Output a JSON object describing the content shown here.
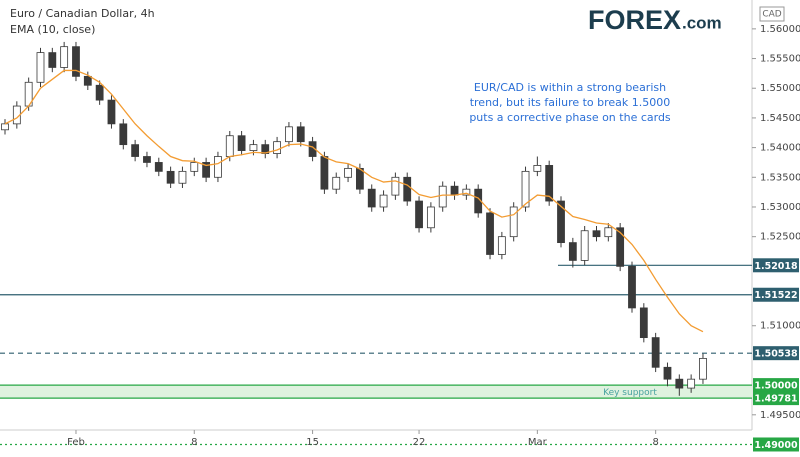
{
  "chart_data": {
    "type": "candlestick",
    "title": "Euro / Canadian Dollar, 4h",
    "logo": {
      "brand": "FOREX",
      "suffix": ".com"
    },
    "currency": "CAD",
    "annotation": [
      "EUR/CAD is within a strong bearish",
      "trend, but its failure to break 1.5000",
      "puts a corrective phase on the cards"
    ],
    "categories": [
      null,
      null,
      null,
      null,
      null,
      null,
      "Feb",
      null,
      null,
      null,
      null,
      null,
      null,
      null,
      null,
      null,
      "8",
      null,
      null,
      null,
      null,
      null,
      null,
      null,
      null,
      null,
      "15",
      null,
      null,
      null,
      null,
      null,
      null,
      null,
      null,
      "22",
      null,
      null,
      null,
      null,
      null,
      null,
      null,
      null,
      null,
      "Mar",
      null,
      null,
      null,
      null,
      null,
      null,
      null,
      null,
      null,
      "8",
      null,
      null,
      null,
      null
    ],
    "open": [
      1.543,
      1.544,
      1.547,
      1.551,
      1.556,
      1.5535,
      1.557,
      1.552,
      1.5505,
      1.548,
      1.544,
      1.5405,
      1.5385,
      1.5375,
      1.536,
      1.534,
      1.536,
      1.5375,
      1.535,
      1.5385,
      1.542,
      1.5395,
      1.5405,
      1.539,
      1.541,
      1.5435,
      1.541,
      1.5385,
      1.533,
      1.535,
      1.5365,
      1.533,
      1.53,
      1.532,
      1.535,
      1.531,
      1.5265,
      1.53,
      1.5335,
      1.532,
      1.533,
      1.529,
      1.522,
      1.525,
      1.53,
      1.536,
      1.537,
      1.531,
      1.524,
      1.521,
      1.526,
      1.525,
      1.5265,
      1.52,
      1.513,
      1.508,
      1.503,
      1.501,
      1.4995,
      1.501
    ],
    "high": [
      1.5448,
      1.5478,
      1.5518,
      1.5568,
      1.5568,
      1.5578,
      1.5578,
      1.5528,
      1.5513,
      1.5488,
      1.5448,
      1.5413,
      1.5393,
      1.5383,
      1.5368,
      1.5368,
      1.5383,
      1.5383,
      1.5393,
      1.5428,
      1.5428,
      1.5413,
      1.5413,
      1.5418,
      1.5443,
      1.5443,
      1.5418,
      1.5393,
      1.5358,
      1.5373,
      1.5373,
      1.5338,
      1.5328,
      1.5358,
      1.5358,
      1.5318,
      1.5308,
      1.5343,
      1.5343,
      1.5338,
      1.5338,
      1.5298,
      1.5258,
      1.5308,
      1.5368,
      1.5385,
      1.5378,
      1.5318,
      1.5248,
      1.5268,
      1.5268,
      1.5273,
      1.5273,
      1.5208,
      1.5138,
      1.5088,
      1.5038,
      1.5018,
      1.5018,
      1.5053
    ],
    "low": [
      1.5422,
      1.5432,
      1.5462,
      1.5502,
      1.5527,
      1.5527,
      1.5512,
      1.5497,
      1.5472,
      1.5432,
      1.5397,
      1.5377,
      1.5367,
      1.5352,
      1.5332,
      1.5332,
      1.5352,
      1.5342,
      1.5342,
      1.5377,
      1.5387,
      1.5387,
      1.5382,
      1.5382,
      1.5402,
      1.5402,
      1.5377,
      1.5322,
      1.5322,
      1.5342,
      1.5322,
      1.5292,
      1.5292,
      1.5312,
      1.5302,
      1.5257,
      1.5257,
      1.5292,
      1.5312,
      1.5312,
      1.5282,
      1.5212,
      1.5212,
      1.5242,
      1.5292,
      1.5352,
      1.5302,
      1.5232,
      1.5198,
      1.5202,
      1.5242,
      1.5242,
      1.5192,
      1.5122,
      1.5072,
      1.5022,
      1.4998,
      1.4982,
      1.4987,
      1.5002
    ],
    "close": [
      1.544,
      1.547,
      1.551,
      1.556,
      1.5535,
      1.557,
      1.552,
      1.5505,
      1.548,
      1.544,
      1.5405,
      1.5385,
      1.5375,
      1.536,
      1.534,
      1.536,
      1.5375,
      1.535,
      1.5385,
      1.542,
      1.5395,
      1.5405,
      1.539,
      1.541,
      1.5435,
      1.541,
      1.5385,
      1.533,
      1.535,
      1.5365,
      1.533,
      1.53,
      1.532,
      1.535,
      1.531,
      1.5265,
      1.53,
      1.5335,
      1.532,
      1.533,
      1.529,
      1.522,
      1.525,
      1.53,
      1.536,
      1.537,
      1.531,
      1.524,
      1.521,
      1.526,
      1.525,
      1.5265,
      1.52,
      1.513,
      1.508,
      1.503,
      1.501,
      1.4995,
      1.501,
      1.5045
    ],
    "up_color": "#ffffff",
    "down_color": "#3a3a3a",
    "wick_color": "#3a3a3a",
    "overlays": [
      {
        "name": "EMA (10, close)",
        "color": "#f39c32",
        "values": [
          1.544,
          1.545,
          1.547,
          1.55,
          1.5515,
          1.553,
          1.553,
          1.5522,
          1.551,
          1.549,
          1.5465,
          1.544,
          1.542,
          1.5402,
          1.5385,
          1.5378,
          1.5377,
          1.537,
          1.5373,
          1.5385,
          1.5388,
          1.5392,
          1.5391,
          1.5396,
          1.5405,
          1.5406,
          1.5401,
          1.5384,
          1.5376,
          1.5373,
          1.5364,
          1.535,
          1.5342,
          1.5344,
          1.5337,
          1.5321,
          1.5316,
          1.532,
          1.532,
          1.5323,
          1.5315,
          1.5293,
          1.5283,
          1.5287,
          1.5305,
          1.532,
          1.5318,
          1.5301,
          1.5284,
          1.5279,
          1.5273,
          1.5271,
          1.5257,
          1.5237,
          1.521,
          1.5178,
          1.5148,
          1.512,
          1.51,
          1.509
        ]
      }
    ],
    "levels": [
      {
        "value": 1.52018,
        "label": "1.52018",
        "color": "#2e5f6f",
        "style": "solid"
      },
      {
        "value": 1.51522,
        "label": "1.51522",
        "color": "#2e5f6f",
        "style": "solid"
      },
      {
        "value": 1.50538,
        "label": "1.50538",
        "color": "#2e5f6f",
        "style": "dashed"
      },
      {
        "value": 1.5,
        "label": "1.50000",
        "color": "#27a745",
        "style": "solid"
      },
      {
        "value": 1.49781,
        "label": "1.49781",
        "color": "#27a745",
        "style": "solid"
      },
      {
        "value": 1.49,
        "label": "1.49000",
        "color": "#27a745",
        "style": "dotted"
      }
    ],
    "zone": {
      "label": "Key support",
      "color": "#dff2df"
    },
    "ylim": [
      1.49244,
      1.56486
    ],
    "yticks": [
      {
        "value": 1.495,
        "label": "1.49500"
      },
      {
        "value": 1.51,
        "label": "1.51000"
      },
      {
        "value": 1.525,
        "label": "1.52500"
      },
      {
        "value": 1.53,
        "label": "1.53000"
      },
      {
        "value": 1.535,
        "label": "1.53500"
      },
      {
        "value": 1.54,
        "label": "1.54000"
      },
      {
        "value": 1.545,
        "label": "1.54500"
      },
      {
        "value": 1.55,
        "label": "1.55000"
      },
      {
        "value": 1.555,
        "label": "1.55500"
      },
      {
        "value": 1.56,
        "label": "1.56000"
      }
    ]
  }
}
